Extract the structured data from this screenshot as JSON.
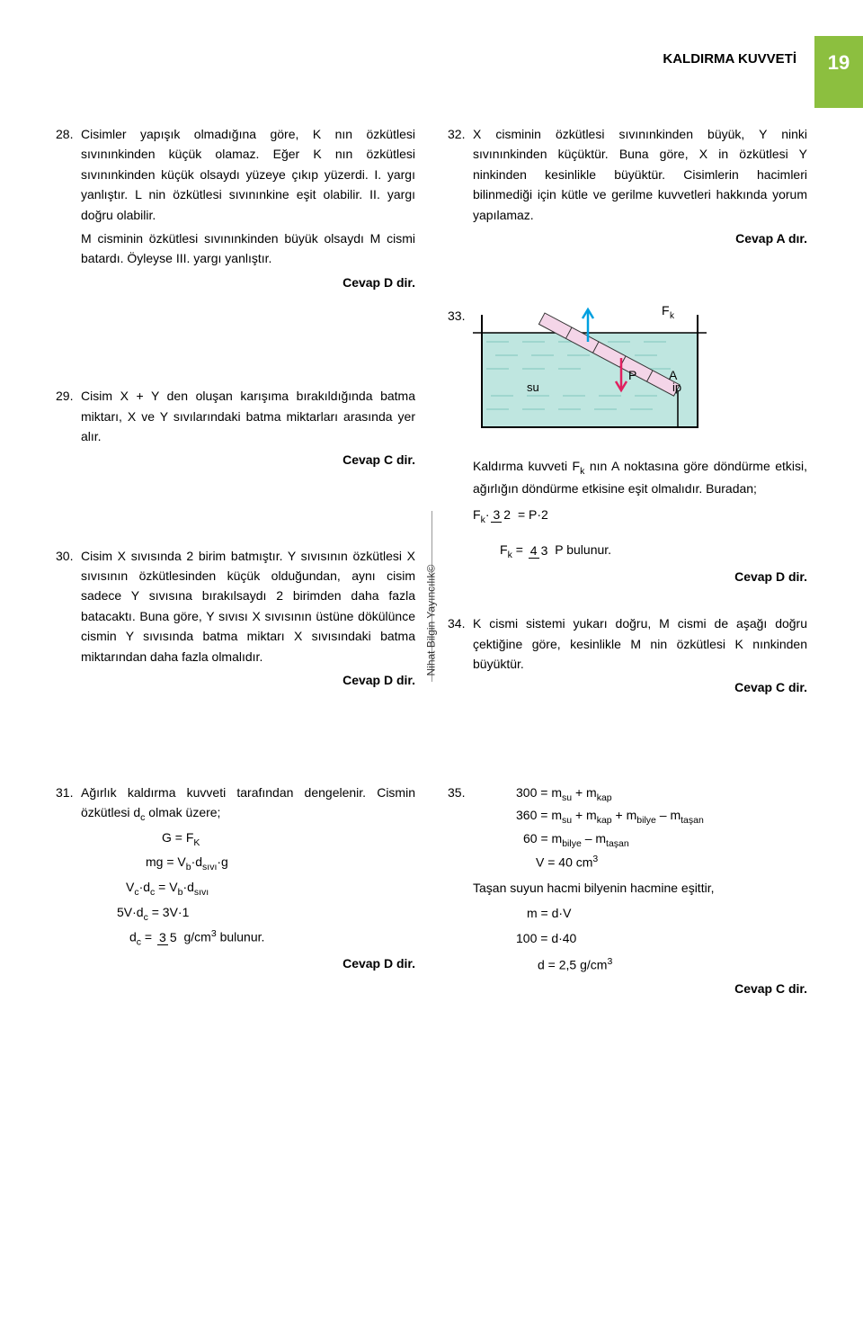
{
  "header": {
    "title": "KALDIRMA KUVVETİ",
    "page_number": "19"
  },
  "q28": {
    "num": "28.",
    "text1": "Cisimler yapışık olmadığına göre, K nın özkütlesi sıvınınkinden küçük olamaz. Eğer K nın özkütlesi sıvınınkinden küçük olsaydı yüzeye çıkıp yüzerdi. I. yargı yanlıştır. L nin özkütlesi sıvınınkine eşit olabilir. II. yargı doğru olabilir.",
    "text2": "M cisminin özkütlesi sıvınınkinden büyük olsaydı M cismi batardı. Öyleyse III. yargı yanlıştır.",
    "answer": "Cevap D dir."
  },
  "q29": {
    "num": "29.",
    "text": "Cisim X + Y den oluşan karışıma bırakıldığında batma miktarı, X ve Y sıvılarındaki batma miktarları arasında yer alır.",
    "answer": "Cevap C dir."
  },
  "q30": {
    "num": "30.",
    "text": "Cisim X sıvısında 2 birim batmıştır. Y sıvısının özkütlesi X sıvısının özkütlesinden küçük olduğundan, aynı cisim sadece Y sıvısına bırakılsaydı 2 birimden daha fazla batacaktı. Buna göre, Y sıvısı X sıvısının üstüne dökülünce cismin Y sıvısında batma miktarı X sıvısındaki batma miktarından daha fazla olmalıdır.",
    "answer": "Cevap D dir."
  },
  "q31": {
    "num": "31.",
    "text": "Ağırlık kaldırma kuvveti tarafından dengelenir. Cismin özkütlesi d",
    "text_sub": "c",
    "text2": " olmak üzere;",
    "eq1_html": "G = F<sub>K</sub>",
    "eq2_html": "mg = V<sub>b</sub>·d<sub>sıvı</sub>·g",
    "eq3_html": "V<sub>c</sub>·d<sub>c</sub> = V<sub>b</sub>·d<sub>sıvı</sub>",
    "eq4_html": "5V·d<sub>c</sub> = 3V·1",
    "eq5_pre": "d",
    "eq5_sub": "c",
    "eq5_mid": " = ",
    "eq5_num": "3",
    "eq5_den": "5",
    "eq5_post": "  g/cm",
    "eq5_sup": "3",
    "eq5_end": "  bulunur.",
    "answer": "Cevap D dir."
  },
  "q32": {
    "num": "32.",
    "text": "X cisminin özkütlesi sıvınınkinden büyük, Y ninki sıvınınkinden küçüktür. Buna göre, X in özkütlesi Y ninkinden kesinlikle büyüktür. Cisimlerin hacimleri bilinmediği için kütle ve gerilme kuvvetleri hakkında yorum yapılamaz.",
    "answer": "Cevap A dır."
  },
  "q33": {
    "num": "33.",
    "diagram": {
      "labels": {
        "Fk": "F",
        "Fk_sub": "k",
        "P": "P",
        "A": "A",
        "su": "su",
        "ip": "ip"
      },
      "colors": {
        "water": "#bfe6e0",
        "water_lines": "#7fc7bb",
        "container": "#000",
        "rod_fill": "#f4d5e8",
        "rod_stroke": "#333",
        "arrow_fk": "#00a0e0",
        "arrow_p": "#e02060"
      }
    },
    "text1": "Kaldırma kuvveti F",
    "text1_sub": "k",
    "text1b": " nın A noktasına göre döndürme etkisi, ağırlığın döndürme etkisine eşit olmalıdır. Buradan;",
    "eq1_pre": "F",
    "eq1_sub": "k",
    "eq1_mid": "·",
    "eq1_num": "3",
    "eq1_den": "2",
    "eq1_post": " = P·2",
    "eq2_pre": "F",
    "eq2_sub": "k",
    "eq2_mid": " = ",
    "eq2_num": "4",
    "eq2_den": "3",
    "eq2_post": " P bulunur.",
    "answer": "Cevap D dir."
  },
  "q34": {
    "num": "34.",
    "text": "K cismi sistemi yukarı doğru, M cismi  de aşağı doğru çektiğine göre, kesinlikle M nin özkütlesi K nınkinden büyüktür.",
    "answer": "Cevap C dir."
  },
  "q35": {
    "num": "35.",
    "eq1_html": "300 = m<sub>su</sub> + m<sub>kap</sub>",
    "eq2_html": "360 = m<sub>su</sub> + m<sub>kap</sub> + m<sub>bilye</sub> – m<sub>taşan</sub>",
    "eq3_html": "60 = m<sub>bilye</sub> – m<sub>taşan</sub>",
    "eq4_html": "V = 40 cm<sup>3</sup>",
    "text1": "Taşan suyun hacmi bilyenin hacmine eşittir,",
    "eq5": "m = d·V",
    "eq6": "100 = d·40",
    "eq7_html": "d = 2,5 g/cm<sup>3</sup>",
    "answer": "Cevap C dir."
  },
  "watermark": "Nihat Bilgin Yayıncılık©"
}
